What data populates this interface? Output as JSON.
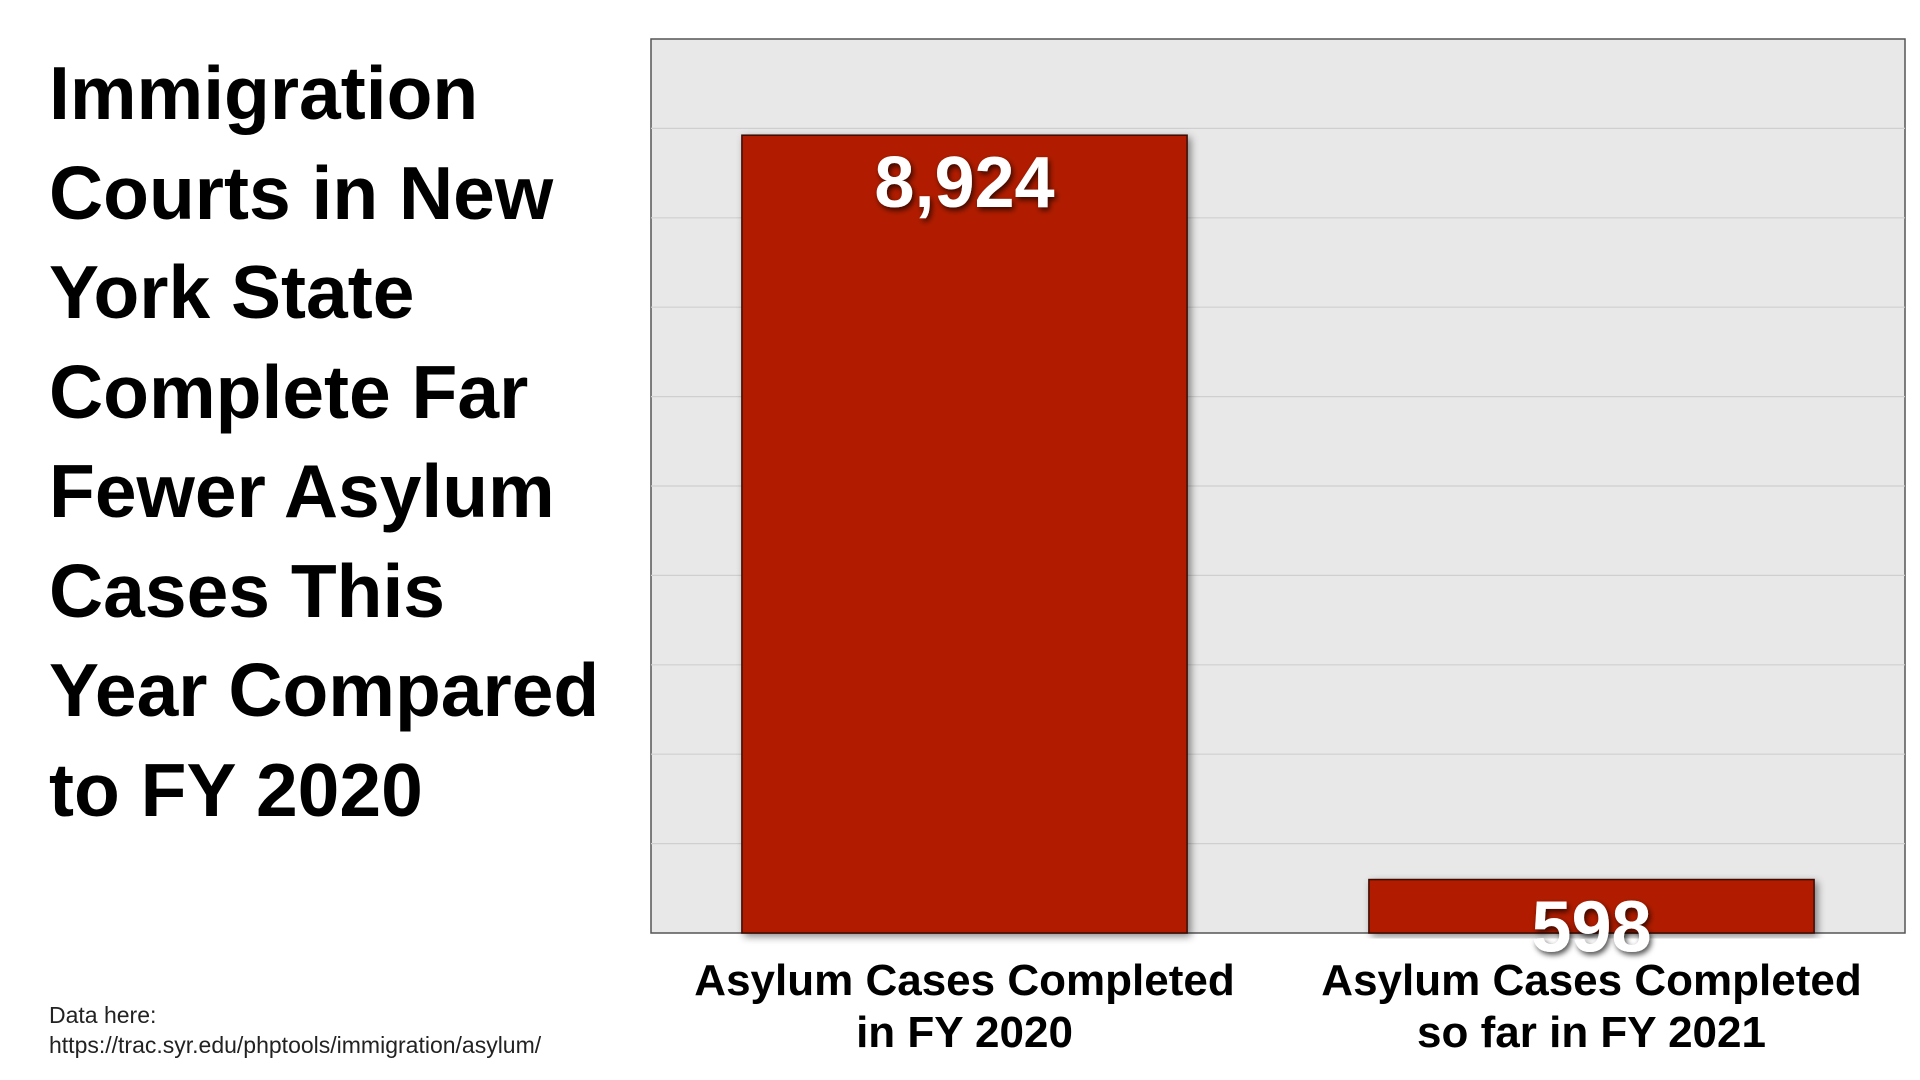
{
  "title": "Immigration Courts in New York State Complete Far Fewer Asylum Cases This Year Compared to FY 2020",
  "title_lines": [
    "Immigration",
    "Courts in New",
    "York State",
    "Complete Far",
    "Fewer Asylum",
    "Cases This",
    "Year Compared",
    "to FY 2020"
  ],
  "source": {
    "label": "Data here:",
    "url": "https://trac.syr.edu/phptools/immigration/asylum/"
  },
  "colors": {
    "bar": "#b11a00",
    "plot_background": "#e8e8e8",
    "gridline": "#cfcfcf"
  },
  "chart_data": {
    "type": "bar",
    "categories": [
      "Asylum Cases Completed in FY 2020",
      "Asylum Cases Completed so far in FY 2021"
    ],
    "category_lines": [
      [
        "Asylum Cases Completed",
        "in FY 2020"
      ],
      [
        "Asylum Cases Completed",
        "so far in FY 2021"
      ]
    ],
    "values": [
      8924,
      598
    ],
    "data_labels": [
      "8,924",
      "598"
    ],
    "ylim": [
      0,
      10000
    ],
    "grid": true,
    "gridline_count": 10,
    "legend": "none",
    "y_axis_labels_shown": false
  }
}
